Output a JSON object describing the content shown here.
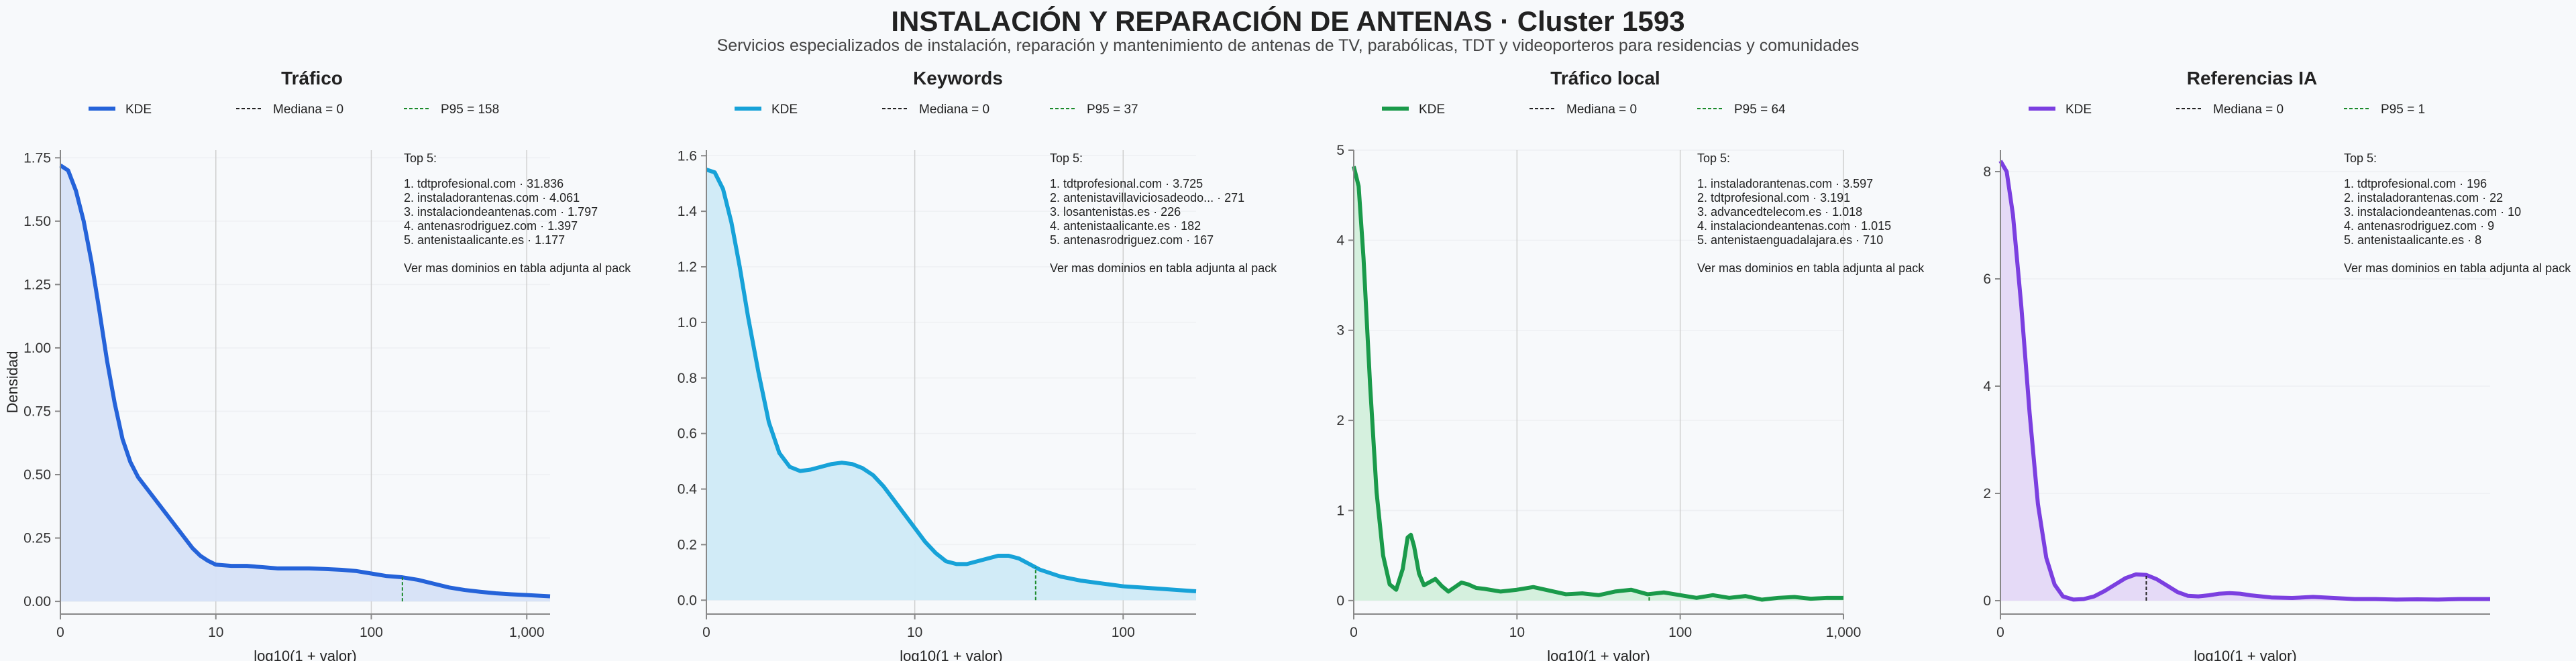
{
  "title": "INSTALACIÓN Y REPARACIÓN DE ANTENAS · Cluster 1593",
  "subtitle": "Servicios especializados de instalación, reparación y mantenimiento de antenas de TV, parabólicas, TDT y videoporteros para residencias y comunidades",
  "shared": {
    "ylabel": "Densidad",
    "xlabel": "log10(1 + valor)",
    "legend_kde": "KDE",
    "top_title": "Top 5:",
    "footnote": "Ver mas dominios en tabla adjunta al pack"
  },
  "chart_data": [
    {
      "type": "area",
      "title": "Tráfico",
      "color": "#2563d9",
      "fill": "#d6e1f7",
      "xlim": [
        0,
        3.15
      ],
      "ylim": [
        -0.05,
        1.78
      ],
      "xticks": [
        0,
        1,
        2,
        3
      ],
      "xticklabels": [
        "0",
        "10",
        "100",
        "1,000"
      ],
      "yticks": [
        0,
        0.25,
        0.5,
        0.75,
        1.0,
        1.25,
        1.5,
        1.75
      ],
      "yticklabels": [
        "0.00",
        "0.25",
        "0.50",
        "0.75",
        "1.00",
        "1.25",
        "1.50",
        "1.75"
      ],
      "median_label": "Mediana = 0",
      "p95_label": "P95 = 158",
      "median_x": 0,
      "p95_x": 2.2,
      "curve": [
        [
          0,
          1.72
        ],
        [
          0.05,
          1.7
        ],
        [
          0.1,
          1.62
        ],
        [
          0.15,
          1.5
        ],
        [
          0.2,
          1.34
        ],
        [
          0.25,
          1.15
        ],
        [
          0.3,
          0.95
        ],
        [
          0.35,
          0.78
        ],
        [
          0.4,
          0.64
        ],
        [
          0.45,
          0.55
        ],
        [
          0.5,
          0.49
        ],
        [
          0.55,
          0.45
        ],
        [
          0.6,
          0.41
        ],
        [
          0.65,
          0.37
        ],
        [
          0.7,
          0.33
        ],
        [
          0.75,
          0.29
        ],
        [
          0.8,
          0.25
        ],
        [
          0.85,
          0.21
        ],
        [
          0.9,
          0.18
        ],
        [
          0.95,
          0.16
        ],
        [
          1.0,
          0.145
        ],
        [
          1.1,
          0.14
        ],
        [
          1.2,
          0.14
        ],
        [
          1.3,
          0.135
        ],
        [
          1.4,
          0.13
        ],
        [
          1.5,
          0.13
        ],
        [
          1.6,
          0.13
        ],
        [
          1.7,
          0.128
        ],
        [
          1.8,
          0.125
        ],
        [
          1.9,
          0.12
        ],
        [
          2.0,
          0.11
        ],
        [
          2.1,
          0.1
        ],
        [
          2.2,
          0.095
        ],
        [
          2.3,
          0.085
        ],
        [
          2.4,
          0.07
        ],
        [
          2.5,
          0.055
        ],
        [
          2.6,
          0.045
        ],
        [
          2.7,
          0.038
        ],
        [
          2.8,
          0.032
        ],
        [
          2.9,
          0.028
        ],
        [
          3.0,
          0.025
        ],
        [
          3.15,
          0.02
        ]
      ],
      "top5": [
        "1. tdtprofesional.com · 31.836",
        "2. instaladorantenas.com · 4.061",
        "3. instalaciondeantenas.com · 1.797",
        "4. antenasrodriguez.com · 1.397",
        "5. antenistaalicante.es · 1.177"
      ]
    },
    {
      "type": "area",
      "title": "Keywords",
      "color": "#17a2d8",
      "fill": "#cfeaf7",
      "xlim": [
        0,
        2.35
      ],
      "ylim": [
        -0.05,
        1.62
      ],
      "xticks": [
        0,
        1,
        2
      ],
      "xticklabels": [
        "0",
        "10",
        "100"
      ],
      "yticks": [
        0,
        0.2,
        0.4,
        0.6,
        0.8,
        1.0,
        1.2,
        1.4,
        1.6
      ],
      "yticklabels": [
        "0.0",
        "0.2",
        "0.4",
        "0.6",
        "0.8",
        "1.0",
        "1.2",
        "1.4",
        "1.6"
      ],
      "median_label": "Mediana = 0",
      "p95_label": "P95 = 37",
      "median_x": 0,
      "p95_x": 1.58,
      "curve": [
        [
          0,
          1.55
        ],
        [
          0.04,
          1.54
        ],
        [
          0.08,
          1.48
        ],
        [
          0.12,
          1.36
        ],
        [
          0.16,
          1.2
        ],
        [
          0.2,
          1.02
        ],
        [
          0.25,
          0.82
        ],
        [
          0.3,
          0.64
        ],
        [
          0.35,
          0.53
        ],
        [
          0.4,
          0.48
        ],
        [
          0.45,
          0.465
        ],
        [
          0.5,
          0.47
        ],
        [
          0.55,
          0.48
        ],
        [
          0.6,
          0.49
        ],
        [
          0.65,
          0.495
        ],
        [
          0.7,
          0.49
        ],
        [
          0.75,
          0.475
        ],
        [
          0.8,
          0.45
        ],
        [
          0.85,
          0.41
        ],
        [
          0.9,
          0.36
        ],
        [
          0.95,
          0.31
        ],
        [
          1.0,
          0.26
        ],
        [
          1.05,
          0.21
        ],
        [
          1.1,
          0.17
        ],
        [
          1.15,
          0.14
        ],
        [
          1.2,
          0.13
        ],
        [
          1.25,
          0.13
        ],
        [
          1.3,
          0.14
        ],
        [
          1.35,
          0.15
        ],
        [
          1.4,
          0.16
        ],
        [
          1.45,
          0.16
        ],
        [
          1.5,
          0.15
        ],
        [
          1.55,
          0.13
        ],
        [
          1.6,
          0.11
        ],
        [
          1.7,
          0.085
        ],
        [
          1.8,
          0.07
        ],
        [
          1.9,
          0.06
        ],
        [
          2.0,
          0.05
        ],
        [
          2.1,
          0.045
        ],
        [
          2.2,
          0.04
        ],
        [
          2.35,
          0.032
        ]
      ],
      "top5": [
        "1. tdtprofesional.com · 3.725",
        "2. antenistavillaviciosadeodo... · 271",
        "3. losantenistas.es · 226",
        "4. antenistaalicante.es · 182",
        "5. antenasrodriguez.com · 167"
      ]
    },
    {
      "type": "area",
      "title": "Tráfico local",
      "color": "#1a9a4a",
      "fill": "#d3efdc",
      "xlim": [
        0,
        3.0
      ],
      "ylim": [
        -0.15,
        5.0
      ],
      "xticks": [
        0,
        1,
        2,
        3
      ],
      "xticklabels": [
        "0",
        "10",
        "100",
        "1,000"
      ],
      "yticks": [
        0,
        1,
        2,
        3,
        4,
        5
      ],
      "yticklabels": [
        "0",
        "1",
        "2",
        "3",
        "4",
        "5"
      ],
      "median_label": "Mediana = 0",
      "p95_label": "P95 = 64",
      "median_x": 0,
      "p95_x": 1.81,
      "curve": [
        [
          0,
          4.82
        ],
        [
          0.03,
          4.6
        ],
        [
          0.06,
          3.8
        ],
        [
          0.1,
          2.4
        ],
        [
          0.14,
          1.2
        ],
        [
          0.18,
          0.5
        ],
        [
          0.22,
          0.18
        ],
        [
          0.26,
          0.12
        ],
        [
          0.3,
          0.35
        ],
        [
          0.33,
          0.7
        ],
        [
          0.35,
          0.73
        ],
        [
          0.37,
          0.6
        ],
        [
          0.4,
          0.3
        ],
        [
          0.43,
          0.17
        ],
        [
          0.46,
          0.2
        ],
        [
          0.5,
          0.24
        ],
        [
          0.54,
          0.16
        ],
        [
          0.58,
          0.1
        ],
        [
          0.62,
          0.15
        ],
        [
          0.66,
          0.2
        ],
        [
          0.7,
          0.18
        ],
        [
          0.75,
          0.14
        ],
        [
          0.8,
          0.13
        ],
        [
          0.9,
          0.1
        ],
        [
          1.0,
          0.12
        ],
        [
          1.1,
          0.15
        ],
        [
          1.2,
          0.11
        ],
        [
          1.3,
          0.07
        ],
        [
          1.4,
          0.08
        ],
        [
          1.5,
          0.06
        ],
        [
          1.6,
          0.1
        ],
        [
          1.7,
          0.12
        ],
        [
          1.8,
          0.07
        ],
        [
          1.9,
          0.09
        ],
        [
          2.0,
          0.06
        ],
        [
          2.1,
          0.03
        ],
        [
          2.2,
          0.06
        ],
        [
          2.3,
          0.03
        ],
        [
          2.4,
          0.05
        ],
        [
          2.5,
          0.01
        ],
        [
          2.6,
          0.03
        ],
        [
          2.7,
          0.04
        ],
        [
          2.8,
          0.02
        ],
        [
          2.9,
          0.03
        ],
        [
          3.0,
          0.03
        ]
      ],
      "top5": [
        "1. instaladorantenas.com · 3.597",
        "2. tdtprofesional.com · 3.191",
        "3. advancedtelecom.es · 1.018",
        "4. instalaciondeantenas.com · 1.015",
        "5. antenistaenguadalajara.es · 710"
      ]
    },
    {
      "type": "area",
      "title": "Referencias IA",
      "color": "#7b3fe0",
      "fill": "#e4d8f7",
      "xlim": [
        0,
        2.35
      ],
      "ylim": [
        -0.25,
        8.4
      ],
      "xticks": [
        0
      ],
      "xticklabels": [
        "0"
      ],
      "yticks": [
        0,
        2,
        4,
        6,
        8
      ],
      "yticklabels": [
        "0",
        "2",
        "4",
        "6",
        "8"
      ],
      "median_label": "Mediana = 0",
      "p95_label": "P95 = 1",
      "median_x": 0,
      "p95_x": 0.7,
      "curve": [
        [
          0,
          8.2
        ],
        [
          0.03,
          8.0
        ],
        [
          0.06,
          7.2
        ],
        [
          0.1,
          5.5
        ],
        [
          0.14,
          3.5
        ],
        [
          0.18,
          1.8
        ],
        [
          0.22,
          0.8
        ],
        [
          0.26,
          0.3
        ],
        [
          0.3,
          0.08
        ],
        [
          0.35,
          0.02
        ],
        [
          0.4,
          0.03
        ],
        [
          0.45,
          0.08
        ],
        [
          0.5,
          0.18
        ],
        [
          0.55,
          0.3
        ],
        [
          0.6,
          0.42
        ],
        [
          0.65,
          0.49
        ],
        [
          0.7,
          0.48
        ],
        [
          0.75,
          0.4
        ],
        [
          0.8,
          0.28
        ],
        [
          0.85,
          0.16
        ],
        [
          0.9,
          0.09
        ],
        [
          0.95,
          0.08
        ],
        [
          1.0,
          0.1
        ],
        [
          1.05,
          0.13
        ],
        [
          1.1,
          0.14
        ],
        [
          1.15,
          0.13
        ],
        [
          1.2,
          0.1
        ],
        [
          1.3,
          0.06
        ],
        [
          1.4,
          0.05
        ],
        [
          1.5,
          0.07
        ],
        [
          1.6,
          0.05
        ],
        [
          1.7,
          0.03
        ],
        [
          1.8,
          0.03
        ],
        [
          1.9,
          0.02
        ],
        [
          2.0,
          0.025
        ],
        [
          2.1,
          0.02
        ],
        [
          2.2,
          0.03
        ],
        [
          2.35,
          0.03
        ]
      ],
      "top5": [
        "1. tdtprofesional.com · 196",
        "2. instaladorantenas.com · 22",
        "3. instalaciondeantenas.com · 10",
        "4. antenasrodriguez.com · 9",
        "5. antenistaalicante.es · 8"
      ]
    }
  ]
}
